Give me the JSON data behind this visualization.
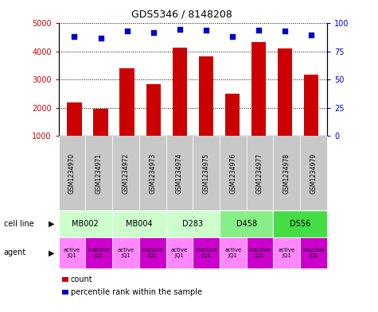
{
  "title": "GDS5346 / 8148208",
  "samples": [
    "GSM1234970",
    "GSM1234971",
    "GSM1234972",
    "GSM1234973",
    "GSM1234974",
    "GSM1234975",
    "GSM1234976",
    "GSM1234977",
    "GSM1234978",
    "GSM1234979"
  ],
  "counts": [
    2200,
    1950,
    3400,
    2850,
    4150,
    3830,
    2500,
    4330,
    4100,
    3180
  ],
  "percentiles": [
    88,
    87,
    93,
    92,
    95,
    94,
    88,
    94,
    93,
    90
  ],
  "ylim_left": [
    1000,
    5000
  ],
  "ylim_right": [
    0,
    100
  ],
  "yticks_left": [
    1000,
    2000,
    3000,
    4000,
    5000
  ],
  "yticks_right": [
    0,
    25,
    50,
    75,
    100
  ],
  "bar_color": "#cc0000",
  "dot_color": "#0000cc",
  "cell_lines": [
    {
      "name": "MB002",
      "span": [
        0,
        2
      ],
      "color": "#ccffcc"
    },
    {
      "name": "MB004",
      "span": [
        2,
        4
      ],
      "color": "#ccffcc"
    },
    {
      "name": "D283",
      "span": [
        4,
        6
      ],
      "color": "#ccffcc"
    },
    {
      "name": "D458",
      "span": [
        6,
        8
      ],
      "color": "#88ee88"
    },
    {
      "name": "D556",
      "span": [
        8,
        10
      ],
      "color": "#44dd44"
    }
  ],
  "agent_labels": [
    "active\nJQ1",
    "inactive\nJQ1",
    "active\nJQ1",
    "inactive\nJQ1",
    "active\nJQ1",
    "inactive\nJQ1",
    "active\nJQ1",
    "inactive\nJQ1",
    "active\nJQ1",
    "inactive\nJQ1"
  ],
  "agent_active_color": "#ff88ff",
  "agent_inactive_color": "#cc00cc",
  "cell_line_label": "cell line",
  "agent_label": "agent",
  "legend_count_label": "count",
  "legend_pct_label": "percentile rank within the sample",
  "bar_width": 0.55,
  "sample_box_color": "#c8c8c8",
  "background_color": "#ffffff"
}
